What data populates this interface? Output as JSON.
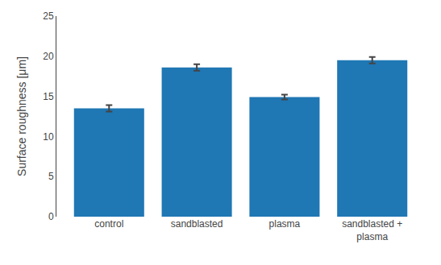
{
  "chart_data": {
    "type": "bar",
    "categories": [
      "control",
      "sandblasted",
      "plasma",
      "sandblasted +\nplasma"
    ],
    "values": [
      13.5,
      18.6,
      14.9,
      19.5
    ],
    "errors": [
      0.4,
      0.4,
      0.3,
      0.4
    ],
    "ylabel": "Surface roughness [μm]",
    "ylim": [
      0,
      25
    ],
    "yticks": [
      0,
      5,
      10,
      15,
      20,
      25
    ],
    "grid": false
  }
}
